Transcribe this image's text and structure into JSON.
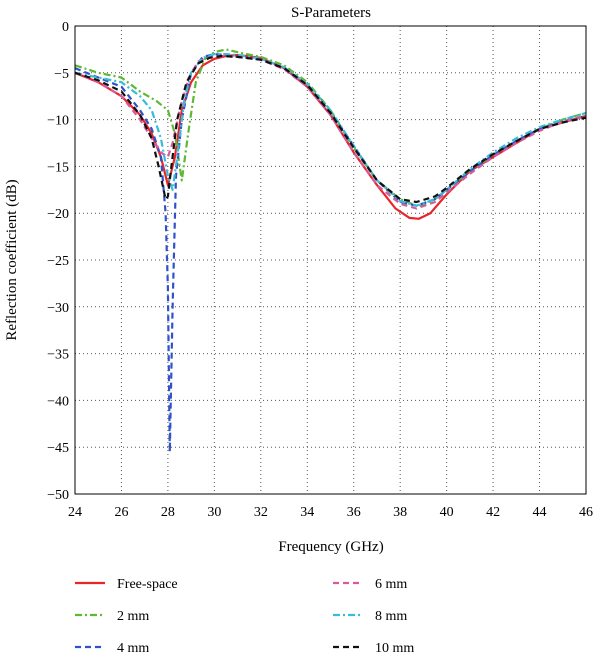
{
  "chart_data": {
    "type": "line",
    "title": "S-Parameters",
    "xlabel": "Frequency (GHz)",
    "ylabel": "Reflection coefficient (dB)",
    "xlim": [
      24,
      46
    ],
    "ylim": [
      -50,
      0
    ],
    "xticks": [
      24,
      26,
      28,
      30,
      32,
      34,
      36,
      38,
      40,
      42,
      44,
      46
    ],
    "yticks": [
      0,
      -5,
      -10,
      -15,
      -20,
      -25,
      -30,
      -35,
      -40,
      -45,
      -50
    ],
    "grid": "dotted",
    "legend_position": "bottom",
    "series": [
      {
        "name": "Free-space",
        "color": "#e8262a",
        "dash": "solid",
        "x": [
          24,
          25,
          26,
          26.8,
          27.3,
          27.7,
          28.0,
          28.3,
          28.6,
          29.0,
          29.5,
          30.0,
          30.5,
          31,
          32,
          33,
          34,
          35,
          36,
          37,
          37.8,
          38.4,
          38.8,
          39.3,
          40,
          41,
          42,
          43,
          44,
          45,
          46
        ],
        "y": [
          -5,
          -6,
          -7.5,
          -9.5,
          -11.5,
          -14,
          -17,
          -14,
          -9,
          -6,
          -4.2,
          -3.5,
          -3.2,
          -3.1,
          -3.4,
          -4.5,
          -6.5,
          -9.5,
          -13.5,
          -17,
          -19.5,
          -20.5,
          -20.6,
          -20,
          -18,
          -15.5,
          -14,
          -12.5,
          -11,
          -10.3,
          -9.6
        ]
      },
      {
        "name": "2 mm",
        "color": "#5db833",
        "dash": "dashdot",
        "x": [
          24,
          25,
          26,
          26.8,
          27.5,
          28.0,
          28.3,
          28.6,
          28.9,
          29.2,
          29.6,
          30.0,
          30.5,
          31,
          32,
          33,
          34,
          35,
          36,
          37,
          38,
          38.8,
          39.5,
          40,
          41,
          42,
          43,
          44,
          45,
          46
        ],
        "y": [
          -4.2,
          -5,
          -5.5,
          -7,
          -8,
          -9,
          -11.5,
          -16.5,
          -11,
          -6,
          -3.5,
          -2.8,
          -2.5,
          -2.8,
          -3.3,
          -4.2,
          -6,
          -9,
          -13,
          -16.5,
          -18.5,
          -19.3,
          -18.5,
          -17.5,
          -15.5,
          -13.8,
          -12.3,
          -11,
          -10,
          -9.3
        ]
      },
      {
        "name": "4 mm",
        "color": "#2f52c9",
        "dash": "dash",
        "x": [
          24,
          25,
          26,
          26.8,
          27.3,
          27.7,
          27.9,
          28.0,
          28.08,
          28.2,
          28.35,
          28.6,
          29.0,
          29.5,
          30.0,
          30.5,
          31,
          32,
          33,
          34,
          35,
          36,
          37,
          38,
          38.7,
          39.5,
          40,
          41,
          42,
          43,
          44,
          45,
          46
        ],
        "y": [
          -4.5,
          -5.5,
          -6.5,
          -9,
          -11,
          -14,
          -20,
          -28,
          -45.5,
          -30,
          -16,
          -10,
          -5,
          -3.3,
          -3,
          -3.1,
          -3.3,
          -3.6,
          -4.5,
          -6.3,
          -9.2,
          -12.8,
          -16.5,
          -18.8,
          -19.2,
          -18.5,
          -17.5,
          -15.5,
          -13.8,
          -12.3,
          -11,
          -10.2,
          -9.6
        ]
      },
      {
        "name": "6 mm",
        "color": "#d55aa0",
        "dash": "dash",
        "x": [
          24,
          25,
          26,
          26.8,
          27.3,
          27.7,
          28.0,
          28.2,
          28.5,
          28.9,
          29.3,
          29.8,
          30.3,
          31,
          32,
          33,
          34,
          35,
          36,
          37,
          38,
          38.7,
          39.5,
          40,
          41,
          42,
          43,
          44,
          45,
          46
        ],
        "y": [
          -5,
          -6,
          -7.5,
          -10,
          -12,
          -13.5,
          -14,
          -12.5,
          -9,
          -5.5,
          -3.8,
          -3.3,
          -3.2,
          -3.3,
          -3.6,
          -4.6,
          -6.5,
          -9.5,
          -13.5,
          -17,
          -19,
          -19.5,
          -18.8,
          -17.8,
          -15.8,
          -14,
          -12.5,
          -11.2,
          -10.2,
          -9.6
        ]
      },
      {
        "name": "8 mm",
        "color": "#38bcd8",
        "dash": "dashdot",
        "x": [
          24,
          25,
          26,
          26.8,
          27.3,
          27.7,
          28.0,
          28.2,
          28.4,
          28.7,
          29.0,
          29.5,
          30.0,
          30.5,
          31,
          32,
          33,
          34,
          35,
          36,
          37,
          38,
          38.7,
          39.5,
          40,
          41,
          42,
          43,
          44,
          45,
          46
        ],
        "y": [
          -5,
          -5.5,
          -6,
          -7.5,
          -9,
          -12,
          -16,
          -17.5,
          -14,
          -8,
          -5,
          -3.4,
          -3,
          -3,
          -3.1,
          -3.5,
          -4.4,
          -6.2,
          -9,
          -12.8,
          -16.5,
          -18.7,
          -19.2,
          -18.5,
          -17.5,
          -15.3,
          -13.5,
          -12,
          -10.8,
          -10,
          -9.3
        ]
      },
      {
        "name": "10 mm",
        "color": "#111111",
        "dash": "dash",
        "x": [
          24,
          25,
          26,
          26.8,
          27.3,
          27.6,
          27.9,
          28.0,
          28.15,
          28.4,
          28.8,
          29.3,
          29.8,
          30.3,
          31,
          32,
          33,
          34,
          35,
          36,
          37,
          38,
          38.7,
          39.5,
          40,
          41,
          42,
          43,
          44,
          45,
          46
        ],
        "y": [
          -5,
          -5.8,
          -7,
          -9.5,
          -12,
          -15,
          -18.5,
          -18.2,
          -15,
          -10,
          -6,
          -4,
          -3.4,
          -3.2,
          -3.3,
          -3.6,
          -4.5,
          -6.3,
          -9.3,
          -13,
          -16.5,
          -18.5,
          -18.8,
          -18.2,
          -17.3,
          -15.3,
          -13.7,
          -12.3,
          -11,
          -10.3,
          -9.8
        ]
      }
    ]
  }
}
